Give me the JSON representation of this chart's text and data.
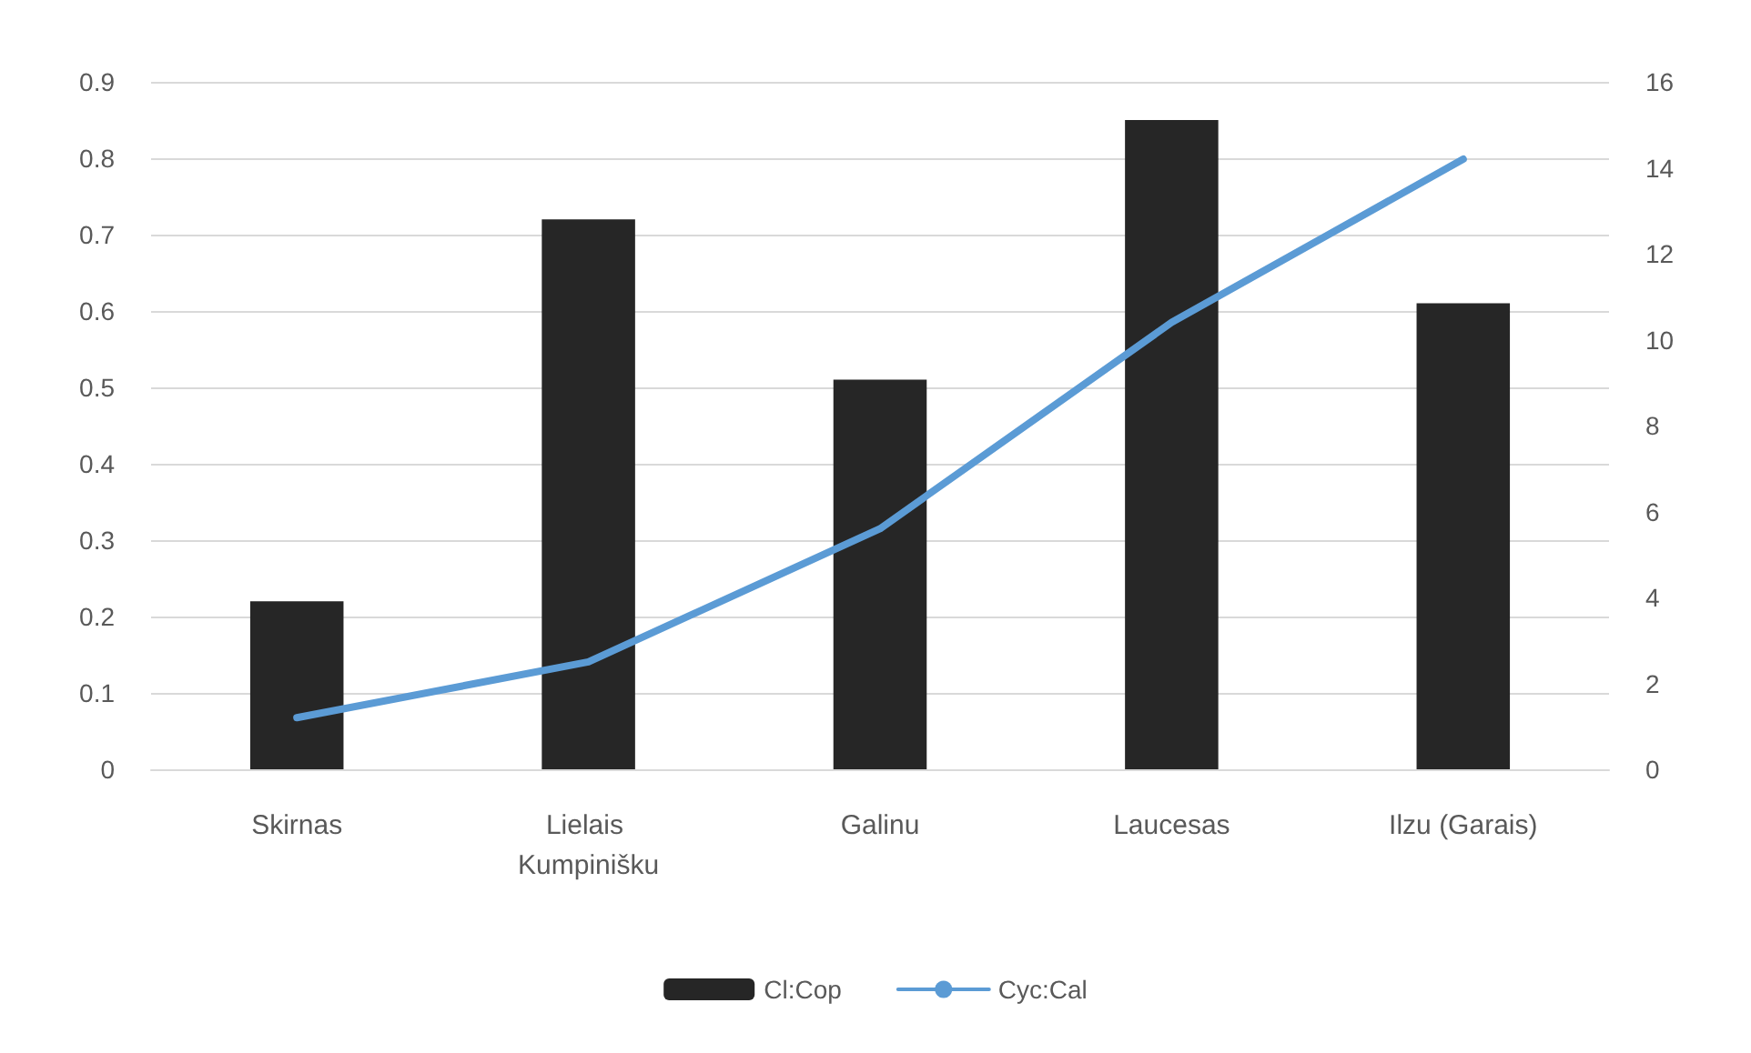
{
  "chart_data": {
    "type": "bar",
    "categories": [
      "Skirnas",
      "Lielais Kumpinišku",
      "Galinu",
      "Laucesas",
      "Ilzu (Garais)"
    ],
    "series": [
      {
        "name": "Cl:Cop",
        "color": "#262626",
        "values": [
          0.22,
          0.72,
          0.51,
          0.85,
          0.61
        ]
      },
      {
        "name": "Cyc:Cal",
        "type": "line",
        "axis": "y2",
        "color": "#5b9bd5",
        "values": [
          1.2,
          2.5,
          5.6,
          10.4,
          14.2
        ]
      }
    ],
    "ylim": [
      0,
      0.9
    ],
    "yticks": [
      0,
      0.1,
      0.2,
      0.3,
      0.4,
      0.5,
      0.6,
      0.7,
      0.8,
      0.9
    ],
    "y2lim": [
      0,
      16
    ],
    "y2ticks": [
      0,
      2,
      4,
      6,
      8,
      10,
      12,
      14,
      16
    ],
    "grid": "y",
    "legend": "bottom",
    "marker": "none",
    "line_style": "solid"
  }
}
